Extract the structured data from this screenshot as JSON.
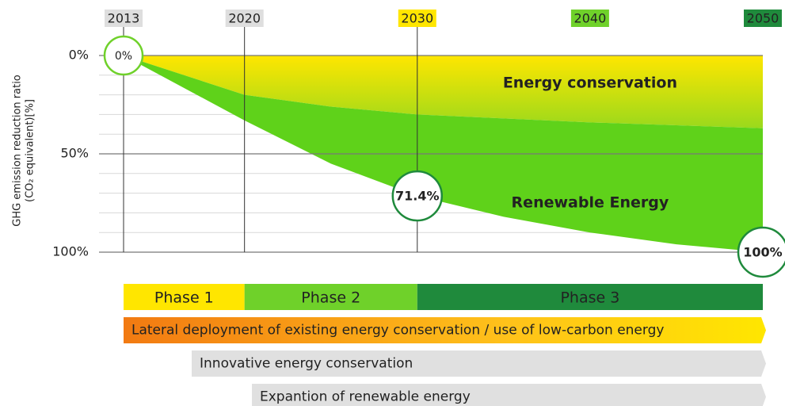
{
  "chart_data": {
    "type": "stacked_area",
    "y_label_lines": [
      "GHG emission reduction ratio",
      "(CO₂ equivalent)[%]"
    ],
    "x": [
      2013,
      2020,
      2025,
      2030,
      2035,
      2040,
      2045,
      2050
    ],
    "xlim": [
      2013,
      2050
    ],
    "xticks": [
      2013,
      2020,
      2030,
      2040,
      2050
    ],
    "xtick_colors": [
      "#dedede",
      "#dedede",
      "#ffe600",
      "#6fd12a",
      "#1f8a3c"
    ],
    "xtick_text_colors": [
      "#222222",
      "#222222",
      "#222222",
      "#222222",
      "#ffffff"
    ],
    "ylim": [
      0,
      100
    ],
    "y_reversed": true,
    "yticks": [
      {
        "value": 0,
        "label": "0%"
      },
      {
        "value": 50,
        "label": "50%"
      },
      {
        "value": 100,
        "label": "100%"
      }
    ],
    "grid": true,
    "series": [
      {
        "name": "Energy conservation",
        "color": "#ffe600",
        "color2": "#9ad91c",
        "values": [
          0,
          20,
          26,
          30,
          32,
          34,
          35.5,
          37
        ]
      },
      {
        "name": "Renewable Energy",
        "color": "#5fd21a",
        "values": [
          0,
          13,
          29,
          41.4,
          50,
          56,
          60.5,
          63
        ]
      }
    ],
    "annotations": [
      {
        "x": 2013,
        "value": 0,
        "label": "0%"
      },
      {
        "x": 2030,
        "value": 71.4,
        "label": "71.4%"
      },
      {
        "x": 2050,
        "value": 100,
        "label": "100%"
      }
    ],
    "phases": [
      {
        "label": "Phase 1",
        "color": "#ffe600",
        "text_color": "#222222"
      },
      {
        "label": "Phase 2",
        "color": "#6fd12a",
        "text_color": "#222222"
      },
      {
        "label": "Phase 3",
        "color": "#1f8a3c",
        "text_color": "#ffffff"
      }
    ],
    "initiatives": [
      "Lateral deployment of existing energy conservation / use of low-carbon energy",
      "Innovative energy conservation",
      "Expantion of renewable energy"
    ]
  }
}
